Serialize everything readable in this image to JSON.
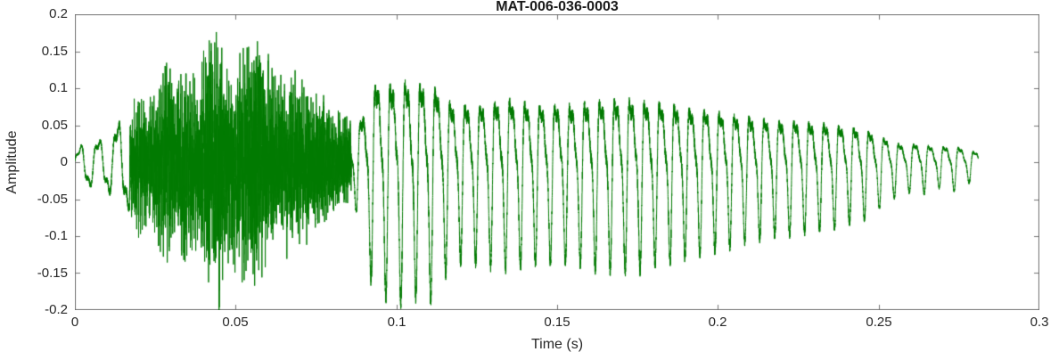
{
  "figure": {
    "background": "#ffffff"
  },
  "chart_data": {
    "type": "line",
    "title": "MAT-006-036-0003",
    "xlabel": "Time (s)",
    "ylabel": "Amplitude",
    "xlim": [
      0,
      0.3
    ],
    "ylim": [
      -0.2,
      0.2
    ],
    "xticks": [
      0,
      0.05,
      0.1,
      0.15,
      0.2,
      0.25,
      0.3
    ],
    "xtick_labels": [
      "0",
      "0.05",
      "0.1",
      "0.15",
      "0.2",
      "0.25",
      "0.3"
    ],
    "yticks": [
      -0.2,
      -0.15,
      -0.1,
      -0.05,
      0,
      0.05,
      0.1,
      0.15,
      0.2
    ],
    "ytick_labels": [
      "-0.2",
      "-0.15",
      "-0.1",
      "-0.05",
      "0",
      "0.05",
      "0.1",
      "0.15",
      "0.2"
    ],
    "grid": false,
    "line_color": "#007a00",
    "axis_color": "#737373",
    "grid_color": "#e0e0e0",
    "tick_label_color": "#262626",
    "title_color": "#1a1a1a",
    "signal": {
      "kind": "speech-like audio waveform",
      "duration_s": 0.281,
      "envelope": [
        [
          0.0,
          0.012
        ],
        [
          0.004,
          0.035
        ],
        [
          0.008,
          0.03
        ],
        [
          0.012,
          0.05
        ],
        [
          0.016,
          0.06
        ],
        [
          0.02,
          0.1
        ],
        [
          0.024,
          0.09
        ],
        [
          0.028,
          0.16
        ],
        [
          0.031,
          0.12
        ],
        [
          0.034,
          0.14
        ],
        [
          0.038,
          0.12
        ],
        [
          0.042,
          0.17
        ],
        [
          0.045,
          0.18
        ],
        [
          0.048,
          0.13
        ],
        [
          0.052,
          0.15
        ],
        [
          0.056,
          0.17
        ],
        [
          0.06,
          0.13
        ],
        [
          0.064,
          0.11
        ],
        [
          0.068,
          0.12
        ],
        [
          0.072,
          0.1
        ],
        [
          0.076,
          0.09
        ],
        [
          0.08,
          0.08
        ],
        [
          0.084,
          0.06
        ],
        [
          0.087,
          0.05
        ],
        [
          0.09,
          0.11
        ],
        [
          0.094,
          0.17
        ],
        [
          0.098,
          0.16
        ],
        [
          0.102,
          0.17
        ],
        [
          0.106,
          0.16
        ],
        [
          0.11,
          0.17
        ],
        [
          0.114,
          0.14
        ],
        [
          0.118,
          0.12
        ],
        [
          0.125,
          0.12
        ],
        [
          0.135,
          0.13
        ],
        [
          0.145,
          0.12
        ],
        [
          0.155,
          0.12
        ],
        [
          0.165,
          0.13
        ],
        [
          0.175,
          0.13
        ],
        [
          0.185,
          0.12
        ],
        [
          0.195,
          0.11
        ],
        [
          0.205,
          0.1
        ],
        [
          0.215,
          0.09
        ],
        [
          0.225,
          0.085
        ],
        [
          0.235,
          0.08
        ],
        [
          0.245,
          0.07
        ],
        [
          0.252,
          0.05
        ],
        [
          0.258,
          0.035
        ],
        [
          0.263,
          0.04
        ],
        [
          0.268,
          0.03
        ],
        [
          0.273,
          0.035
        ],
        [
          0.278,
          0.025
        ],
        [
          0.281,
          0.02
        ]
      ],
      "segments": [
        {
          "type": "tone",
          "t0": 0.0,
          "t1": 0.017,
          "f": 170
        },
        {
          "type": "noise",
          "t0": 0.017,
          "t1": 0.086,
          "f": 1800
        },
        {
          "type": "voiced",
          "t0": 0.086,
          "t1": 0.281,
          "f": 215
        }
      ]
    }
  }
}
